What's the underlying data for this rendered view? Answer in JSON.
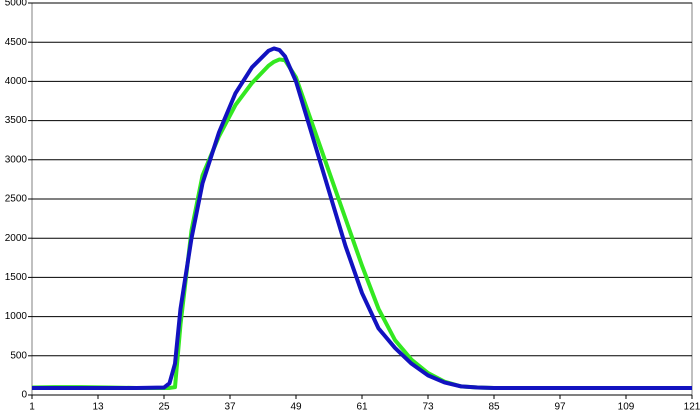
{
  "chart_data": {
    "type": "line",
    "x": [
      1,
      5,
      10,
      15,
      20,
      25,
      26,
      27,
      28,
      30,
      32,
      35,
      38,
      41,
      44,
      45,
      46,
      47,
      49,
      52,
      55,
      58,
      61,
      64,
      67,
      70,
      73,
      76,
      79,
      82,
      85,
      90,
      100,
      110,
      121
    ],
    "series": [
      {
        "color": "#33e820",
        "values": [
          95,
          100,
          100,
          95,
          90,
          90,
          90,
          100,
          900,
          2100,
          2800,
          3300,
          3700,
          3980,
          4200,
          4250,
          4280,
          4270,
          4050,
          3450,
          2850,
          2250,
          1650,
          1100,
          700,
          450,
          280,
          170,
          110,
          95,
          90,
          90,
          90,
          90,
          90
        ]
      },
      {
        "color": "#1212c0",
        "values": [
          90,
          90,
          90,
          90,
          90,
          95,
          150,
          400,
          1100,
          2000,
          2700,
          3350,
          3850,
          4180,
          4390,
          4420,
          4400,
          4320,
          4000,
          3300,
          2600,
          1900,
          1300,
          850,
          600,
          400,
          250,
          160,
          110,
          95,
          90,
          90,
          90,
          90,
          90
        ]
      }
    ],
    "xlim": [
      1,
      121
    ],
    "xticks": [
      1,
      13,
      25,
      37,
      49,
      61,
      73,
      85,
      97,
      109,
      121
    ],
    "ylim": [
      0,
      5000
    ],
    "yticks": [
      0,
      500,
      1000,
      1500,
      2000,
      2500,
      3000,
      3500,
      4000,
      4500,
      5000
    ],
    "grid": true
  }
}
